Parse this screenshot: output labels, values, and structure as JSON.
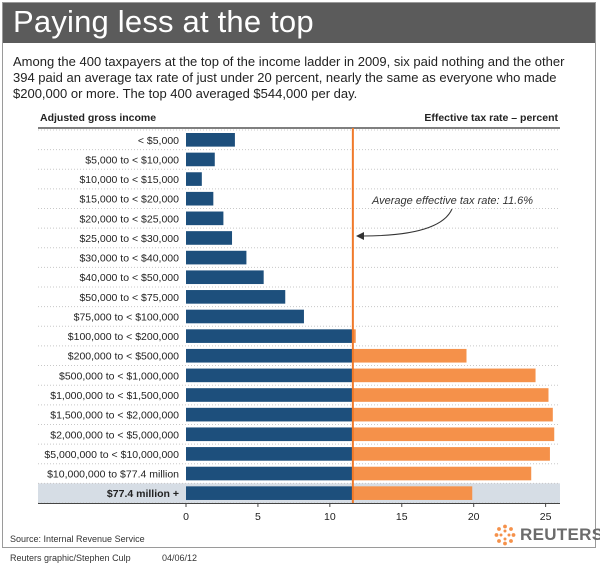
{
  "header": {
    "title": "Paying less at the top",
    "intro": "Among the 400 taxpayers at the top of the income ladder in 2009, six paid nothing and the other 394 paid an average tax rate of just under 20 percent, nearly the same as everyone who made $200,000 or more.  The top 400 averaged $544,000 per day."
  },
  "chart_data": {
    "type": "bar",
    "orientation": "horizontal",
    "row_header_left": "Adjusted gross income",
    "row_header_right": "Effective tax rate – percent",
    "categories": [
      "< $5,000",
      "$5,000 to < $10,000",
      "$10,000 to < $15,000",
      "$15,000 to < $20,000",
      "$20,000 to < $25,000",
      "$25,000 to < $30,000",
      "$30,000 to < $40,000",
      "$40,000 to < $50,000",
      "$50,000 to < $75,000",
      "$75,000 to < $100,000",
      "$100,000 to < $200,000",
      "$200,000 to < $500,000",
      "$500,000 to < $1,000,000",
      "$1,000,000 to < $1,500,000",
      "$1,500,000 to < $2,000,000",
      "$2,000,000 to < $5,000,000",
      "$5,000,000 to < $10,000,000",
      "$10,000,000 to $77.4 million",
      "$77.4 million +"
    ],
    "values": [
      3.4,
      2.0,
      1.1,
      1.9,
      2.6,
      3.2,
      4.2,
      5.4,
      6.9,
      8.2,
      11.8,
      19.5,
      24.3,
      25.2,
      25.5,
      25.6,
      25.3,
      24.0,
      19.9
    ],
    "highlight_category": "$77.4 million +",
    "xlim": [
      0,
      26
    ],
    "xticks": [
      0,
      5,
      10,
      15,
      20,
      25
    ],
    "average_line": {
      "value": 11.6,
      "label": "Average effective tax rate: 11.6%"
    },
    "colors": {
      "below_average": "#1d4f7c",
      "above_average": "#f5914a",
      "average_line": "#f07a2b",
      "highlight_row": "#d6dde5",
      "grid": "#c8c8c8"
    },
    "grid": true
  },
  "footer": {
    "source": "Source: Internal Revenue Service",
    "credit": "Reuters graphic/Stephen Culp",
    "date": "04/06/12",
    "logo_text": "REUTERS"
  }
}
